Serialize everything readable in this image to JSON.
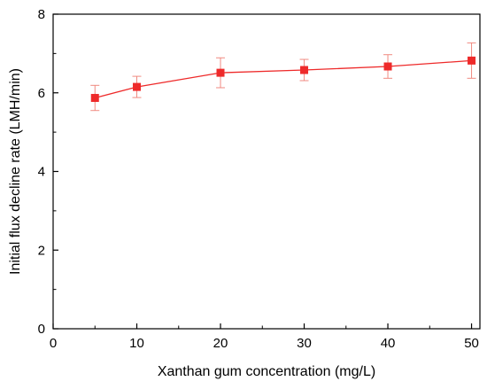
{
  "chart_data": {
    "type": "line",
    "xlabel": "Xanthan gum concentration (mg/L)",
    "ylabel": "Initial flux decline rate (LMH/min)",
    "xlim": [
      0,
      51
    ],
    "ylim": [
      0,
      8
    ],
    "x_ticks": [
      0,
      10,
      20,
      30,
      40,
      50
    ],
    "y_ticks": [
      0,
      2,
      4,
      6,
      8
    ],
    "grid": false,
    "series": [
      {
        "color": "#ee2a2a",
        "errorbar_color": "#f08a80",
        "marker": "square",
        "x": [
          5,
          10,
          20,
          30,
          40,
          50
        ],
        "y": [
          5.87,
          6.15,
          6.51,
          6.58,
          6.67,
          6.82
        ],
        "error": [
          0.32,
          0.27,
          0.38,
          0.27,
          0.3,
          0.45
        ]
      }
    ]
  }
}
